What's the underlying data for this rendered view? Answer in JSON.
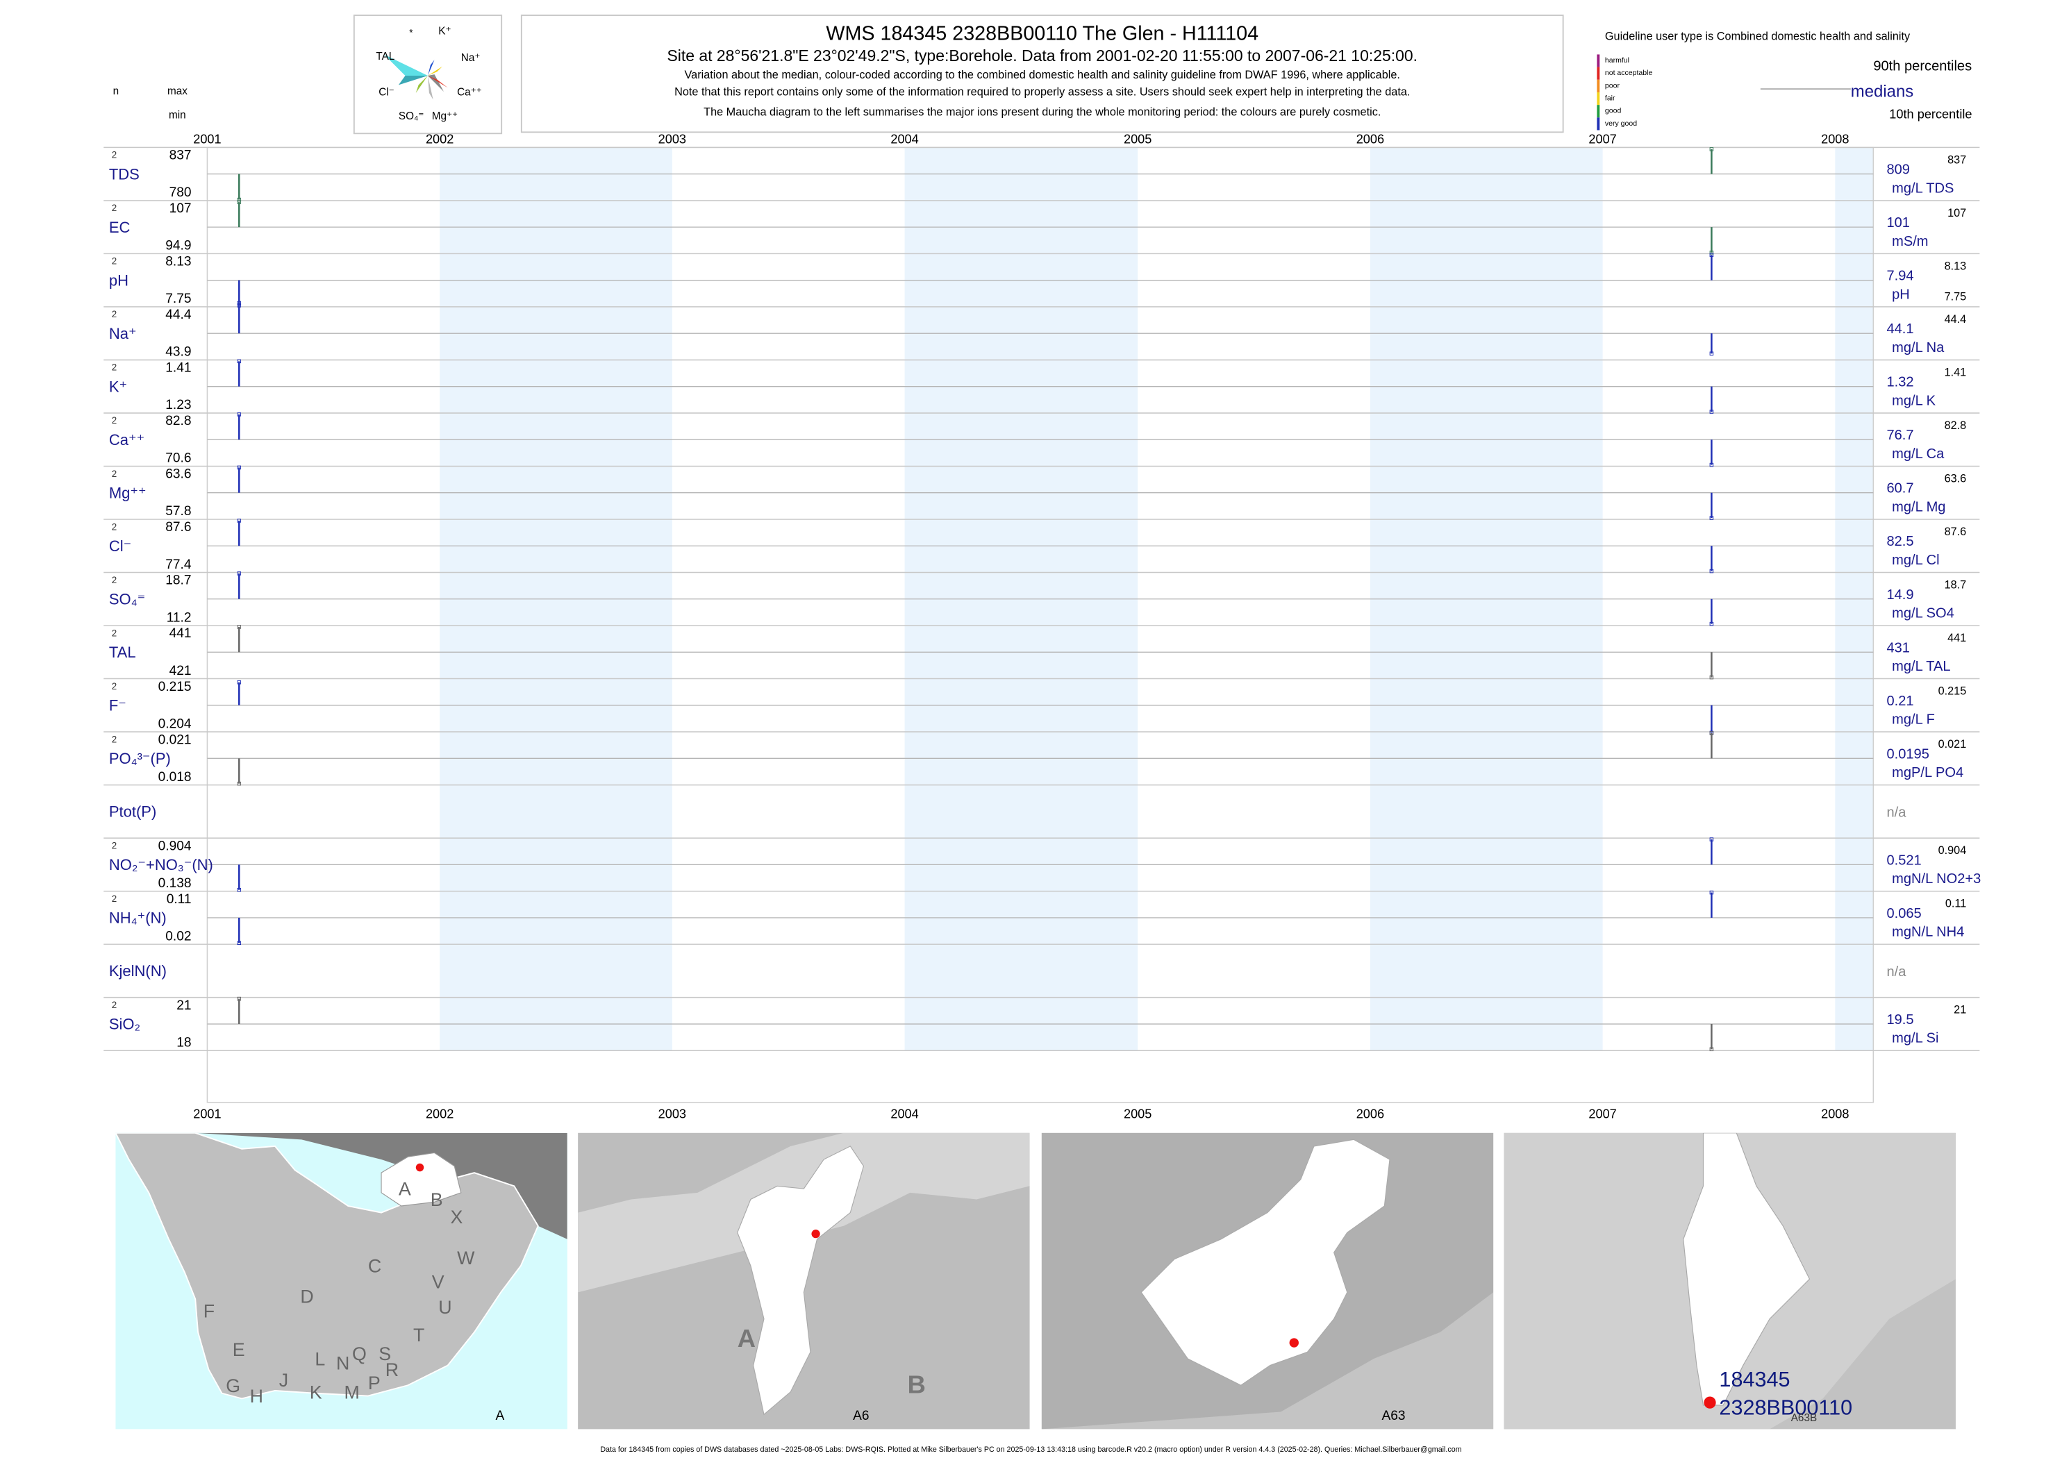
{
  "header": {
    "title": "WMS 184345 2328BB00110 The Glen - H111104",
    "subtitle": "Site at 28°56'21.8\"E 23°02'49.2\"S, type:Borehole.  Data from 2001-02-20 11:55:00 to 2007-06-21 10:25:00.",
    "note1": "Variation about the median,  colour-coded according to the combined domestic health and salinity guideline from DWAF 1996, where applicable.",
    "note2": "Note that this report contains only some of the information required to properly assess a site. Users should seek expert help in interpreting the data.",
    "note3": "The Maucha diagram to the left summarises the major ions present during the whole monitoring period: the colours are purely cosmetic."
  },
  "maucha": {
    "labels": [
      "K⁺",
      "Na⁺",
      "Ca⁺⁺",
      "Mg⁺⁺",
      "SO₄⁼",
      "Cl⁻",
      "TAL",
      "*"
    ]
  },
  "legend": {
    "guideline_title": "Guideline user type is Combined domestic health and salinity",
    "classes": [
      {
        "label": "harmful",
        "color": "#9b1b80"
      },
      {
        "label": "not acceptable",
        "color": "#e0221f"
      },
      {
        "label": "poor",
        "color": "#f28c1e"
      },
      {
        "label": "fair",
        "color": "#f2d31b"
      },
      {
        "label": "good",
        "color": "#1f9c3f"
      },
      {
        "label": "very good",
        "color": "#1f2fb5"
      }
    ],
    "p90": "90th percentiles",
    "medians": "medians",
    "p10": "10th percentile"
  },
  "left_header": {
    "n": "n",
    "max": "max",
    "min": "min"
  },
  "footer": "Data for 184345 from copies of DWS databases dated ~2025-08-05 Labs: DWS-RQIS. Plotted at Mike Silberbauer's PC on 2025-09-13 13:43:18 using barcode.R v20.2 (macro option) under R version 4.4.3 (2025-02-28). Queries: Michael.Silberbauer@gmail.com",
  "maps": [
    {
      "caption": "A",
      "labels": [
        "A",
        "B",
        "X",
        "C",
        "W",
        "D",
        "V",
        "U",
        "F",
        "T",
        "E",
        "G",
        "H",
        "J",
        "K",
        "L",
        "N",
        "M",
        "Q",
        "P",
        "S",
        "R"
      ]
    },
    {
      "caption": "A6",
      "labels": [
        "A",
        "B"
      ]
    },
    {
      "caption": "A63",
      "labels": []
    },
    {
      "caption": "A63B",
      "labels": [
        "184345",
        "2328BB00110"
      ]
    }
  ],
  "chart_data": {
    "type": "barcode",
    "x_axis": {
      "type": "time",
      "min": "2001-01-01",
      "max": "2008-03-01",
      "ticks": [
        "2001",
        "2002",
        "2003",
        "2004",
        "2005",
        "2006",
        "2007",
        "2008"
      ]
    },
    "shaded_years": [
      "2002",
      "2004",
      "2006",
      "2008"
    ],
    "sample_dates": [
      "2001-02-20",
      "2007-06-21"
    ],
    "variables": [
      {
        "name": "TDS",
        "n": "2",
        "max": "837",
        "min": "780",
        "median": "809",
        "unit": "mg/L TDS",
        "p90": "837",
        "p10": "",
        "values": [
          780,
          837
        ],
        "color": "#3a7a5a"
      },
      {
        "name": "EC",
        "n": "2",
        "max": "107",
        "min": "94.9",
        "median": "101",
        "unit": "mS/m",
        "p90": "107",
        "p10": "",
        "values": [
          107,
          94.9
        ],
        "color": "#3a7a5a"
      },
      {
        "name": "pH",
        "n": "2",
        "max": "8.13",
        "min": "7.75",
        "median": "7.94",
        "unit": "pH",
        "p90": "8.13",
        "p10": "7.75",
        "values": [
          7.75,
          8.13
        ],
        "color": "#1f2fb5"
      },
      {
        "name": "Na⁺",
        "n": "2",
        "max": "44.4",
        "min": "43.9",
        "median": "44.1",
        "unit": "mg/L Na",
        "p90": "44.4",
        "p10": "",
        "values": [
          44.4,
          43.9
        ],
        "color": "#1f2fb5"
      },
      {
        "name": "K⁺",
        "n": "2",
        "max": "1.41",
        "min": "1.23",
        "median": "1.32",
        "unit": "mg/L K",
        "p90": "1.41",
        "p10": "",
        "values": [
          1.41,
          1.23
        ],
        "color": "#1f2fb5"
      },
      {
        "name": "Ca⁺⁺",
        "n": "2",
        "max": "82.8",
        "min": "70.6",
        "median": "76.7",
        "unit": "mg/L Ca",
        "p90": "82.8",
        "p10": "",
        "values": [
          82.8,
          70.6
        ],
        "color": "#1f2fb5"
      },
      {
        "name": "Mg⁺⁺",
        "n": "2",
        "max": "63.6",
        "min": "57.8",
        "median": "60.7",
        "unit": "mg/L Mg",
        "p90": "63.6",
        "p10": "",
        "values": [
          63.6,
          57.8
        ],
        "color": "#1f2fb5"
      },
      {
        "name": "Cl⁻",
        "n": "2",
        "max": "87.6",
        "min": "77.4",
        "median": "82.5",
        "unit": "mg/L Cl",
        "p90": "87.6",
        "p10": "",
        "values": [
          87.6,
          77.4
        ],
        "color": "#1f2fb5"
      },
      {
        "name": "SO₄⁼",
        "n": "2",
        "max": "18.7",
        "min": "11.2",
        "median": "14.9",
        "unit": "mg/L SO4",
        "p90": "18.7",
        "p10": "",
        "values": [
          18.7,
          11.2
        ],
        "color": "#1f2fb5"
      },
      {
        "name": "TAL",
        "n": "2",
        "max": "441",
        "min": "421",
        "median": "431",
        "unit": "mg/L TAL",
        "p90": "441",
        "p10": "",
        "values": [
          441,
          421
        ],
        "color": "#666666"
      },
      {
        "name": "F⁻",
        "n": "2",
        "max": "0.215",
        "min": "0.204",
        "median": "0.21",
        "unit": "mg/L F",
        "p90": "0.215",
        "p10": "",
        "values": [
          0.215,
          0.204
        ],
        "color": "#1f2fb5"
      },
      {
        "name": "PO₄³⁻(P)",
        "n": "2",
        "max": "0.021",
        "min": "0.018",
        "median": "0.0195",
        "unit": "mgP/L PO4",
        "p90": "0.021",
        "p10": "",
        "values": [
          0.018,
          0.021
        ],
        "color": "#666666"
      },
      {
        "name": "Ptot(P)",
        "n": "",
        "max": "",
        "min": "",
        "median": "n/a",
        "unit": "",
        "p90": "",
        "p10": "",
        "values": [],
        "color": "#666666"
      },
      {
        "name": "NO₂⁻+NO₃⁻(N)",
        "n": "2",
        "max": "0.904",
        "min": "0.138",
        "median": "0.521",
        "unit": "mgN/L NO2+3",
        "p90": "0.904",
        "p10": "",
        "values": [
          0.138,
          0.904
        ],
        "color": "#1f2fb5"
      },
      {
        "name": "NH₄⁺(N)",
        "n": "2",
        "max": "0.11",
        "min": "0.02",
        "median": "0.065",
        "unit": "mgN/L NH4",
        "p90": "0.11",
        "p10": "",
        "values": [
          0.02,
          0.11
        ],
        "color": "#1f2fb5"
      },
      {
        "name": "KjelN(N)",
        "n": "",
        "max": "",
        "min": "",
        "median": "n/a",
        "unit": "",
        "p90": "",
        "p10": "",
        "values": [],
        "color": "#666666"
      },
      {
        "name": "SiO₂",
        "n": "2",
        "max": "21",
        "min": "18",
        "median": "19.5",
        "unit": "mg/L Si",
        "p90": "21",
        "p10": "",
        "values": [
          21,
          18
        ],
        "color": "#666666"
      }
    ]
  }
}
